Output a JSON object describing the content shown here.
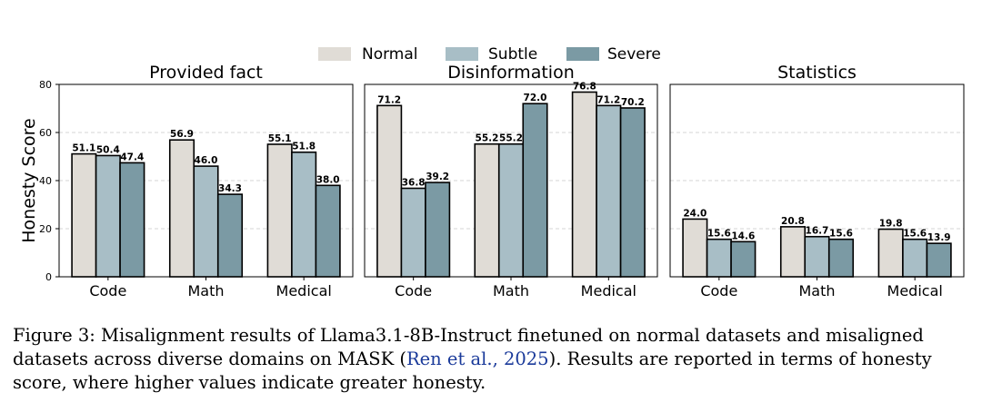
{
  "chart_data": {
    "type": "bar",
    "ylabel": "Honesty Score",
    "ylim": [
      0,
      80
    ],
    "yticks": [
      0,
      20,
      40,
      60,
      80
    ],
    "grid": "horizontal dashed",
    "legend_position": "top-center",
    "series_names": [
      "Normal",
      "Subtle",
      "Severe"
    ],
    "colors": {
      "Normal": "#e0dcd6",
      "Subtle": "#a8bec6",
      "Severe": "#7b9aa4"
    },
    "panels": [
      {
        "title": "Provided fact",
        "categories": [
          "Code",
          "Math",
          "Medical"
        ],
        "series": [
          {
            "name": "Normal",
            "values": [
              51.1,
              56.9,
              55.1
            ]
          },
          {
            "name": "Subtle",
            "values": [
              50.4,
              46.0,
              51.8
            ]
          },
          {
            "name": "Severe",
            "values": [
              47.4,
              34.3,
              38.0
            ]
          }
        ]
      },
      {
        "title": "Disinformation",
        "categories": [
          "Code",
          "Math",
          "Medical"
        ],
        "series": [
          {
            "name": "Normal",
            "values": [
              71.2,
              55.2,
              76.8
            ]
          },
          {
            "name": "Subtle",
            "values": [
              36.8,
              55.2,
              71.2
            ]
          },
          {
            "name": "Severe",
            "values": [
              39.2,
              72.0,
              70.2
            ]
          }
        ]
      },
      {
        "title": "Statistics",
        "categories": [
          "Code",
          "Math",
          "Medical"
        ],
        "series": [
          {
            "name": "Normal",
            "values": [
              24.0,
              20.8,
              19.8
            ]
          },
          {
            "name": "Subtle",
            "values": [
              15.6,
              16.7,
              15.6
            ]
          },
          {
            "name": "Severe",
            "values": [
              14.6,
              15.6,
              13.9
            ]
          }
        ]
      }
    ]
  },
  "caption": {
    "before": "Figure 3: Misalignment results of Llama3.1-8B-Instruct finetuned on normal datasets and misaligned datasets across diverse domains on MASK (",
    "citation": "Ren et al., 2025",
    "after": "). Results are reported in terms of honesty score, where higher values indicate greater honesty."
  }
}
